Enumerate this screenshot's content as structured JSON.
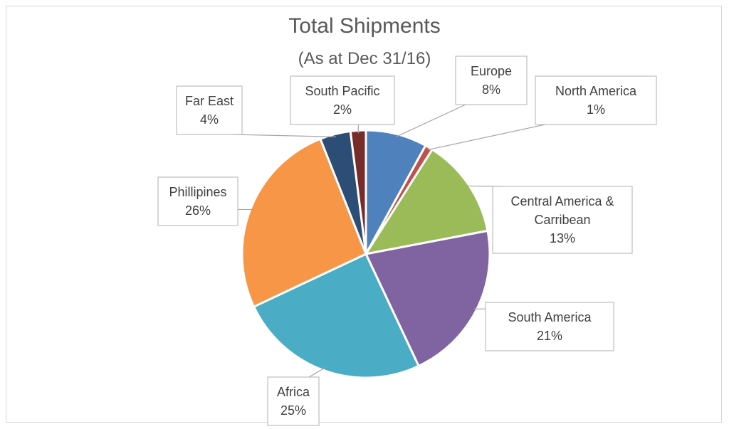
{
  "chart_data": {
    "type": "pie",
    "title": "Total Shipments",
    "subtitle": "(As at Dec 31/16)",
    "start_angle_deg": 0,
    "direction": "clockwise",
    "slices": [
      {
        "label": [
          "Europe"
        ],
        "value": 8,
        "value_label": "8%",
        "color": "#4f81bd"
      },
      {
        "label": [
          "North America"
        ],
        "value": 1,
        "value_label": "1%",
        "color": "#c0504d"
      },
      {
        "label": [
          "Central America &",
          "Carribean"
        ],
        "value": 13,
        "value_label": "13%",
        "color": "#9bbb59"
      },
      {
        "label": [
          "South America"
        ],
        "value": 21,
        "value_label": "21%",
        "color": "#8064a2"
      },
      {
        "label": [
          "Africa"
        ],
        "value": 25,
        "value_label": "25%",
        "color": "#4bacc6"
      },
      {
        "label": [
          "Phillipines"
        ],
        "value": 26,
        "value_label": "26%",
        "color": "#f79646"
      },
      {
        "label": [
          "Far East"
        ],
        "value": 4,
        "value_label": "4%",
        "color": "#2c4d75"
      },
      {
        "label": [
          "South Pacific"
        ],
        "value": 2,
        "value_label": "2%",
        "color": "#772c2a"
      }
    ]
  }
}
